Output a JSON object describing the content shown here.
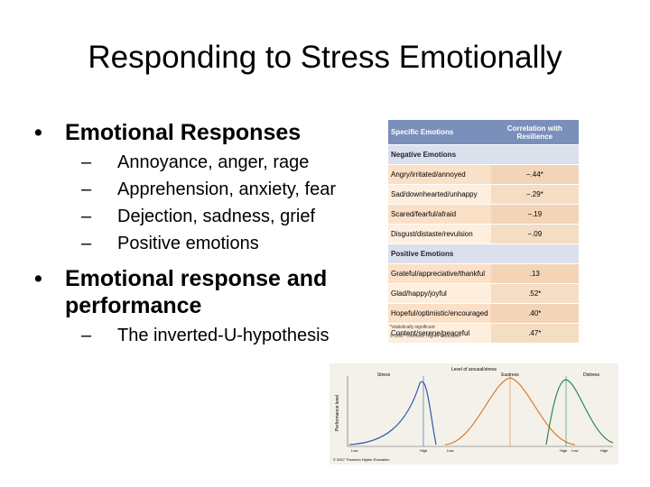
{
  "title": "Responding to Stress Emotionally",
  "bullets": [
    {
      "text": "Emotional Responses",
      "items": [
        "Annoyance, anger, rage",
        "Apprehension, anxiety, fear",
        "Dejection, sadness, grief",
        "Positive emotions"
      ]
    },
    {
      "text": "Emotional response and performance",
      "items": [
        "The inverted-U-hypothesis"
      ]
    }
  ],
  "table": {
    "headers": [
      "Specific Emotions",
      "Correlation with Resilience"
    ],
    "sections": [
      {
        "label": "Negative Emotions",
        "rows": [
          [
            "Angry/irritated/annoyed",
            "−.44*"
          ],
          [
            "Sad/downhearted/unhappy",
            "−.29*"
          ],
          [
            "Scared/fearful/afraid",
            "−.19"
          ],
          [
            "Disgust/distaste/revulsion",
            "−.09"
          ]
        ]
      },
      {
        "label": "Positive Emotions",
        "rows": [
          [
            "Grateful/appreciative/thankful",
            ".13"
          ],
          [
            "Glad/happy/joyful",
            ".52*"
          ],
          [
            "Hopeful/optimistic/encouraged",
            ".40*"
          ],
          [
            "Content/serene/peaceful",
            ".47*"
          ]
        ]
      }
    ],
    "footnote": "*statistically significant",
    "credit": "© 2007 Thomson Higher Education"
  },
  "figure": {
    "title": "Level of arousal/stress",
    "y_label": "Performance level",
    "panels": [
      "Stress",
      "Eustress",
      "Distress"
    ],
    "x_labels": [
      "Low",
      "High",
      "Low",
      "High",
      "Low",
      "High"
    ],
    "credit": "© 2007 Thomson Higher Education"
  }
}
